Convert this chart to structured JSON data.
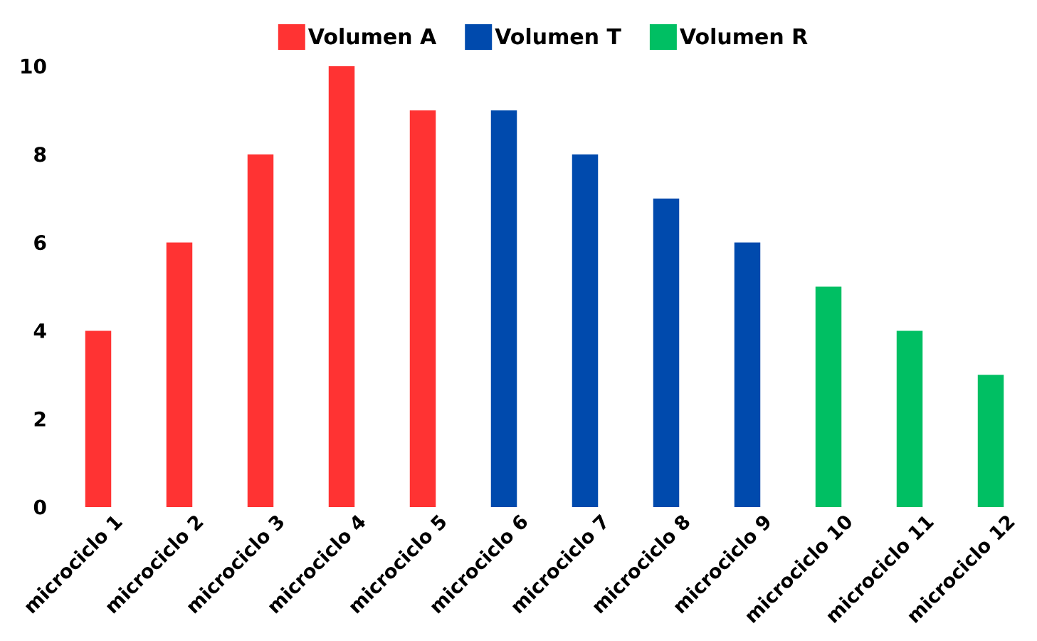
{
  "chart_data": {
    "type": "bar",
    "categories": [
      "microciclo 1",
      "microciclo 2",
      "microciclo 3",
      "microciclo 4",
      "microciclo 5",
      "microciclo 6",
      "microciclo 7",
      "microciclo 8",
      "microciclo 9",
      "microciclo 10",
      "microciclo 11",
      "microciclo 12"
    ],
    "series": [
      {
        "name": "Volumen A",
        "color": "#ff3333",
        "values": [
          4,
          6,
          8,
          10,
          9,
          null,
          null,
          null,
          null,
          null,
          null,
          null
        ]
      },
      {
        "name": "Volumen T",
        "color": "#004aad",
        "values": [
          null,
          null,
          null,
          null,
          null,
          9,
          8,
          7,
          6,
          null,
          null,
          null
        ]
      },
      {
        "name": "Volumen R",
        "color": "#00bf63",
        "values": [
          null,
          null,
          null,
          null,
          null,
          null,
          null,
          null,
          null,
          5,
          4,
          3
        ]
      }
    ],
    "ylim": [
      0,
      10
    ],
    "yticks": [
      0,
      2,
      4,
      6,
      8,
      10
    ],
    "legend": "top"
  }
}
